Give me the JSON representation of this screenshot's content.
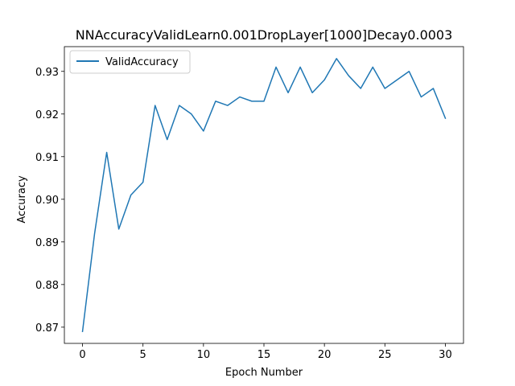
{
  "chart_data": {
    "type": "line",
    "title": "NNAccuracyValidLearn0.001DropLayer[1000]Decay0.0003",
    "xlabel": "Epoch Number",
    "ylabel": "Accuracy",
    "xlim": [
      -1.5,
      31.5
    ],
    "ylim": [
      0.8662,
      0.9358
    ],
    "xticks": [
      0,
      5,
      10,
      15,
      20,
      25,
      30
    ],
    "yticks": [
      0.87,
      0.88,
      0.89,
      0.9,
      0.91,
      0.92,
      0.93
    ],
    "ytick_labels": [
      "0.87",
      "0.88",
      "0.89",
      "0.90",
      "0.91",
      "0.92",
      "0.93"
    ],
    "grid": false,
    "legend_position": "upper-left",
    "series": [
      {
        "name": "ValidAccuracy",
        "color": "#1f77b4",
        "x": [
          0,
          1,
          2,
          3,
          4,
          5,
          6,
          7,
          8,
          9,
          10,
          11,
          12,
          13,
          14,
          15,
          16,
          17,
          18,
          19,
          20,
          21,
          22,
          23,
          24,
          25,
          26,
          27,
          28,
          29,
          30
        ],
        "y": [
          0.869,
          0.892,
          0.911,
          0.893,
          0.901,
          0.904,
          0.922,
          0.914,
          0.922,
          0.92,
          0.916,
          0.923,
          0.922,
          0.924,
          0.923,
          0.923,
          0.931,
          0.925,
          0.931,
          0.925,
          0.928,
          0.933,
          0.929,
          0.926,
          0.931,
          0.926,
          0.928,
          0.93,
          0.924,
          0.926,
          0.919
        ]
      }
    ]
  }
}
